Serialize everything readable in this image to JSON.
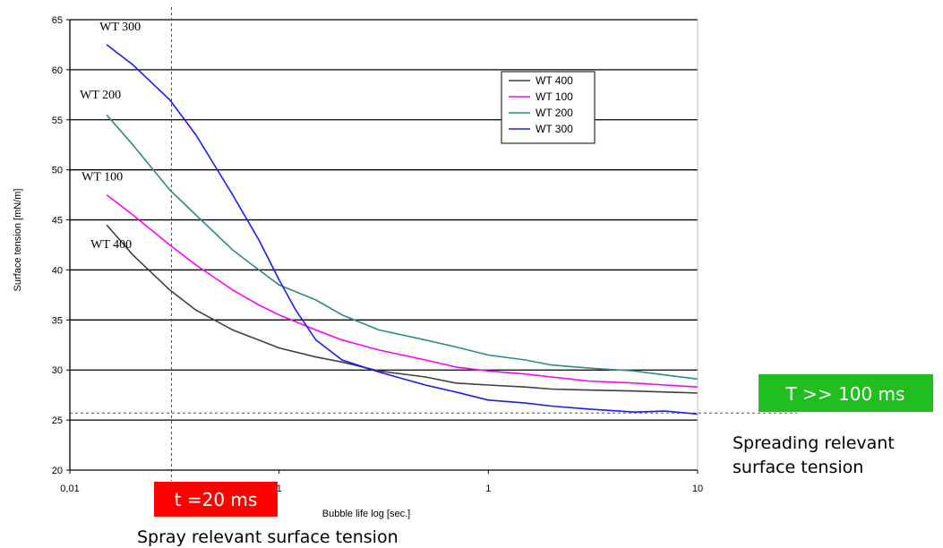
{
  "chart_data": {
    "type": "line",
    "title": "",
    "ylabel": "Surface tension [mN/m]",
    "xlabel": "Bubble life log [sec.]",
    "xscale": "log",
    "xlim": [
      0.01,
      10
    ],
    "ylim": [
      20,
      65
    ],
    "x_ticks": [
      "0,01",
      "1",
      "1",
      "10"
    ],
    "y_ticks": [
      20,
      25,
      30,
      35,
      40,
      45,
      50,
      55,
      60,
      65
    ],
    "grid": "horizontal",
    "legend_position": "top-right",
    "legend": [
      "WT 400",
      "WT 100",
      "WT 200",
      "WT 300"
    ],
    "series": [
      {
        "name": "WT 400",
        "color": "#404040",
        "label": "WT 400",
        "x": [
          0.015,
          0.02,
          0.03,
          0.04,
          0.06,
          0.08,
          0.1,
          0.15,
          0.2,
          0.3,
          0.5,
          0.7,
          1.0,
          1.5,
          2,
          3,
          5,
          7,
          10
        ],
        "y": [
          44.5,
          41.5,
          38.0,
          36.0,
          34.0,
          33.0,
          32.2,
          31.3,
          30.8,
          29.9,
          29.3,
          28.7,
          28.5,
          28.3,
          28.1,
          28.0,
          27.9,
          27.8,
          27.7
        ]
      },
      {
        "name": "WT 100",
        "color": "#ff00ff",
        "label": "WT 100",
        "x": [
          0.015,
          0.02,
          0.03,
          0.04,
          0.06,
          0.08,
          0.1,
          0.15,
          0.2,
          0.3,
          0.5,
          0.7,
          1.0,
          1.5,
          2,
          3,
          5,
          7,
          10
        ],
        "y": [
          47.5,
          45.5,
          42.5,
          40.5,
          38.0,
          36.5,
          35.5,
          34.0,
          33.0,
          32.0,
          31.0,
          30.3,
          29.9,
          29.6,
          29.3,
          28.9,
          28.7,
          28.5,
          28.3
        ]
      },
      {
        "name": "WT 200",
        "color": "#2e8b84",
        "label": "WT 200",
        "x": [
          0.015,
          0.02,
          0.03,
          0.04,
          0.06,
          0.08,
          0.1,
          0.15,
          0.2,
          0.3,
          0.5,
          0.7,
          1.0,
          1.5,
          2,
          3,
          5,
          7,
          10
        ],
        "y": [
          55.5,
          52.5,
          48.0,
          45.5,
          42.0,
          40.0,
          38.5,
          37.0,
          35.5,
          34.0,
          33.0,
          32.3,
          31.5,
          31.0,
          30.5,
          30.2,
          29.9,
          29.5,
          29.1
        ]
      },
      {
        "name": "WT 300",
        "color": "#1a1aff",
        "label": "WT 300",
        "x": [
          0.015,
          0.02,
          0.03,
          0.04,
          0.06,
          0.08,
          0.1,
          0.12,
          0.15,
          0.2,
          0.3,
          0.5,
          0.7,
          1.0,
          1.5,
          2,
          3,
          5,
          7,
          10
        ],
        "y": [
          62.5,
          60.5,
          57.0,
          53.5,
          47.5,
          43.0,
          39.0,
          36.0,
          33.0,
          31.0,
          29.8,
          28.5,
          27.8,
          27.0,
          26.7,
          26.4,
          26.1,
          25.8,
          25.9,
          25.6
        ]
      }
    ],
    "reference_lines": [
      {
        "orientation": "vertical",
        "x": 0.0306
      },
      {
        "orientation": "horizontal",
        "y": 25.7
      }
    ],
    "annotations": {
      "t20": {
        "text": "t =20 ms",
        "color": "#ff0000"
      },
      "spray": {
        "text": "Spray relevant surface tension"
      },
      "t100": {
        "text": "T >> 100 ms",
        "color": "#1fbf1f"
      },
      "spreading": {
        "line1": "Spreading relevant",
        "line2": "surface tension"
      }
    }
  }
}
